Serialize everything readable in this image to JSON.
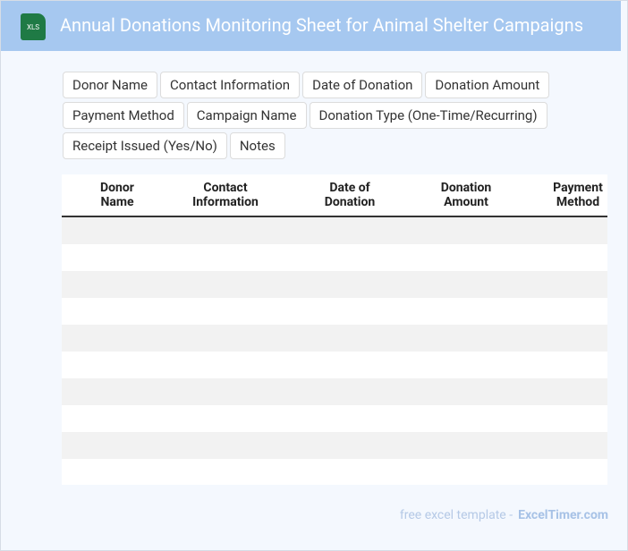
{
  "header": {
    "icon_label": "XLS",
    "title": "Annual Donations Monitoring Sheet for Animal Shelter Campaigns"
  },
  "tags": [
    "Donor Name",
    "Contact Information",
    "Date of Donation",
    "Donation Amount",
    "Payment Method",
    "Campaign Name",
    "Donation Type (One-Time/Recurring)",
    "Receipt Issued (Yes/No)",
    "Notes"
  ],
  "table": {
    "columns": [
      "Donor Name",
      "Contact Information",
      "Date of Donation",
      "Donation Amount",
      "Payment Method"
    ]
  },
  "footer": {
    "text": "free excel template -",
    "link": "ExcelTimer.com"
  }
}
